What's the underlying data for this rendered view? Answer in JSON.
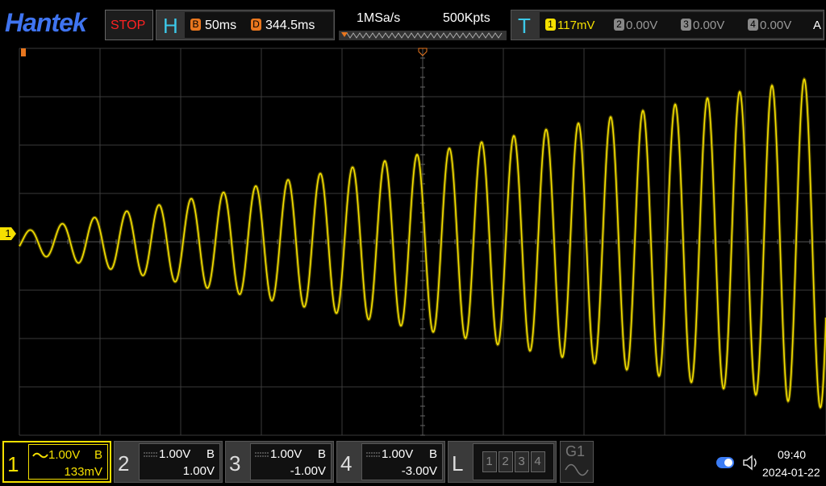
{
  "brand": "Hantek",
  "run_state": "STOP",
  "horizontal": {
    "label": "H",
    "timebase_marker": "B",
    "timebase": "50ms",
    "delay_marker": "D",
    "delay": "344.5ms"
  },
  "acquisition": {
    "sample_rate": "1MSa/s",
    "memory_depth": "500Kpts"
  },
  "trigger": {
    "label": "T",
    "source": "1",
    "level": "117mV",
    "channels": [
      {
        "id": "2",
        "value": "0.00V"
      },
      {
        "id": "3",
        "value": "0.00V"
      },
      {
        "id": "4",
        "value": "0.00V"
      }
    ],
    "mode": "A"
  },
  "channel_marker": "1",
  "channels": [
    {
      "id": "1",
      "scale": "1.00V",
      "bandwidth": "B",
      "offset": "133mV"
    },
    {
      "id": "2",
      "scale": "1.00V",
      "bandwidth": "B",
      "offset": "1.00V"
    },
    {
      "id": "3",
      "scale": "1.00V",
      "bandwidth": "B",
      "offset": "-1.00V"
    },
    {
      "id": "4",
      "scale": "1.00V",
      "bandwidth": "B",
      "offset": "-3.00V"
    }
  ],
  "logic": {
    "label": "L",
    "channels": [
      "1",
      "2",
      "3",
      "4"
    ]
  },
  "generator": "G1",
  "status": {
    "time": "09:40",
    "date": "2024-01-22"
  }
}
